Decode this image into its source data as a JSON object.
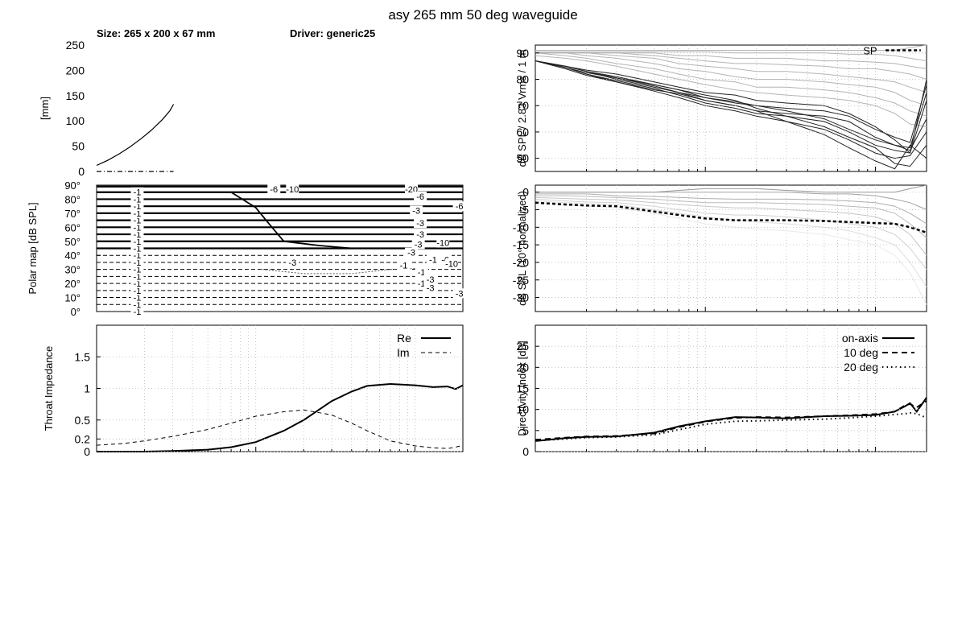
{
  "figure": {
    "title": "asy 265 mm 50 deg waveguide",
    "size_label": "Size: 265 x 200 x 67 mm",
    "driver_label": "Driver: generic25"
  },
  "chart_data": [
    {
      "id": "profile",
      "type": "line",
      "title": "",
      "xlabel": "",
      "ylabel": "[mm]",
      "xlim": [
        0,
        200
      ],
      "ylim": [
        0,
        250
      ],
      "yticks": [
        0,
        50,
        100,
        150,
        200,
        250
      ],
      "grid": false,
      "series": [
        {
          "style": "solid",
          "points": [
            [
              0,
              12
            ],
            [
              6,
              22
            ],
            [
              12,
              34
            ],
            [
              18,
              48
            ],
            [
              24,
              64
            ],
            [
              30,
              82
            ],
            [
              36,
              103
            ],
            [
              40,
              120
            ],
            [
              42,
              133
            ]
          ]
        },
        {
          "style": "dashdot",
          "points": [
            [
              0,
              0
            ],
            [
              42,
              0
            ]
          ]
        }
      ]
    },
    {
      "id": "frequency_response",
      "type": "line",
      "xscale": "log",
      "xlim": [
        100,
        20000
      ],
      "ylim": [
        45,
        93
      ],
      "yticks": [
        50,
        60,
        70,
        80,
        90
      ],
      "ylabel": "dB SPL / 2.83 Vrms / 1 m",
      "grid": true,
      "legend": {
        "position": "top-right",
        "entries": [
          "SP"
        ]
      },
      "x": [
        100,
        150,
        200,
        300,
        500,
        700,
        1000,
        1500,
        2000,
        3000,
        5000,
        7000,
        10000,
        13000,
        16000,
        20000
      ],
      "gray_series": [
        [
          91,
          91,
          91,
          91,
          91,
          91,
          91,
          91,
          91,
          91,
          91,
          91,
          91,
          91,
          92,
          93
        ],
        [
          90.5,
          90.5,
          90.5,
          90.5,
          90.5,
          90.5,
          90.5,
          90,
          90,
          90,
          90,
          89.5,
          89.5,
          89,
          88,
          87
        ],
        [
          90,
          90,
          90,
          90,
          90,
          89,
          89,
          88,
          88,
          88,
          87,
          87,
          86.5,
          86,
          85,
          84
        ],
        [
          90,
          90,
          90,
          90,
          89,
          88,
          87,
          86,
          86,
          85.5,
          85,
          84,
          84,
          83,
          82,
          80
        ],
        [
          90,
          90,
          90,
          89,
          88,
          86,
          85,
          84,
          83,
          83,
          82,
          81,
          80,
          79,
          77,
          75
        ],
        [
          90,
          90,
          89,
          88,
          86,
          84,
          83,
          81,
          80,
          80,
          79,
          78,
          77,
          75,
          72,
          70
        ],
        [
          90,
          89,
          88,
          86,
          84,
          82,
          80,
          79,
          77,
          77,
          76,
          75,
          73,
          71,
          68,
          66
        ],
        [
          89,
          88,
          87,
          85,
          82,
          80,
          78,
          76,
          75,
          74,
          73,
          72,
          70,
          67,
          63,
          62
        ]
      ],
      "sp_segment": {
        "x": [
          11500,
          18500
        ],
        "y": [
          91,
          91
        ]
      },
      "dark_series": [
        [
          87,
          85,
          83,
          81,
          78,
          76,
          73,
          71,
          70,
          69,
          68,
          66,
          61,
          58,
          56,
          78
        ],
        [
          87,
          84.5,
          82.5,
          80.5,
          77.5,
          75,
          72,
          70,
          68,
          67,
          66,
          64,
          58,
          55,
          54,
          75
        ],
        [
          87,
          85,
          83.5,
          82,
          79,
          77,
          75,
          74,
          72,
          71,
          70,
          67,
          62,
          57,
          52,
          80
        ],
        [
          87,
          84.5,
          82,
          79.5,
          76.5,
          74,
          71,
          69,
          67,
          66,
          64,
          60,
          55,
          53,
          52,
          72
        ],
        [
          87,
          85,
          83,
          80,
          77,
          75,
          73,
          71.5,
          70,
          68,
          65,
          61,
          57,
          55,
          53,
          65
        ],
        [
          87,
          84,
          81.5,
          79,
          75.5,
          73,
          70,
          68,
          66,
          64,
          61,
          57,
          52,
          50,
          51,
          60
        ],
        [
          87,
          85,
          83,
          80.5,
          78,
          76,
          74,
          72,
          69,
          66,
          62,
          58,
          54,
          48,
          47,
          55
        ],
        [
          87,
          84.5,
          82,
          79,
          76,
          74.5,
          72,
          70,
          68,
          64,
          59,
          54,
          49,
          46,
          55,
          50
        ]
      ]
    },
    {
      "id": "polar_map",
      "type": "contour",
      "ylabel": "Polar map [dB SPL]",
      "yticks": [
        "0°",
        "10°",
        "20°",
        "30°",
        "40°",
        "50°",
        "60°",
        "70°",
        "80°",
        "90°"
      ],
      "xscale": "log",
      "xlim": [
        100,
        20000
      ],
      "contour_labels": [
        {
          "text": "-1",
          "angle": 0,
          "freq": 180
        },
        {
          "text": "-1",
          "angle": 5,
          "freq": 180
        },
        {
          "text": "-1",
          "angle": 10,
          "freq": 180
        },
        {
          "text": "-1",
          "angle": 15,
          "freq": 180
        },
        {
          "text": "-1",
          "angle": 20,
          "freq": 180
        },
        {
          "text": "-1",
          "angle": 25,
          "freq": 180
        },
        {
          "text": "-1",
          "angle": 30,
          "freq": 180
        },
        {
          "text": "-1",
          "angle": 35,
          "freq": 180
        },
        {
          "text": "-1",
          "angle": 40,
          "freq": 180
        },
        {
          "text": "-1",
          "angle": 45,
          "freq": 180
        },
        {
          "text": "-1",
          "angle": 50,
          "freq": 180
        },
        {
          "text": "-1",
          "angle": 55,
          "freq": 180
        },
        {
          "text": "-1",
          "angle": 60,
          "freq": 180
        },
        {
          "text": "-1",
          "angle": 65,
          "freq": 180
        },
        {
          "text": "-1",
          "angle": 70,
          "freq": 180
        },
        {
          "text": "-1",
          "angle": 75,
          "freq": 180
        },
        {
          "text": "-1",
          "angle": 80,
          "freq": 180
        },
        {
          "text": "-1",
          "angle": 85,
          "freq": 180
        },
        {
          "text": "-6",
          "angle": 87,
          "freq": 1300
        },
        {
          "text": "-10",
          "angle": 87,
          "freq": 1700
        },
        {
          "text": "-20",
          "angle": 87,
          "freq": 9500
        },
        {
          "text": "-6",
          "angle": 82,
          "freq": 10800
        },
        {
          "text": "-3",
          "angle": 72,
          "freq": 10200
        },
        {
          "text": "-3",
          "angle": 63,
          "freq": 10800
        },
        {
          "text": "-3",
          "angle": 55,
          "freq": 10800
        },
        {
          "text": "-3",
          "angle": 48,
          "freq": 10500
        },
        {
          "text": "-3",
          "angle": 42,
          "freq": 9500
        },
        {
          "text": "-3",
          "angle": 35,
          "freq": 1700
        },
        {
          "text": "-1",
          "angle": 33,
          "freq": 8500
        },
        {
          "text": "-1",
          "angle": 28,
          "freq": 11000
        },
        {
          "text": "-1",
          "angle": 20,
          "freq": 11000
        },
        {
          "text": "-3",
          "angle": 23,
          "freq": 12500
        },
        {
          "text": "-3",
          "angle": 17,
          "freq": 12500
        },
        {
          "text": "-1",
          "angle": 37,
          "freq": 13000
        },
        {
          "text": "-6",
          "angle": 37,
          "freq": 15500
        },
        {
          "text": "-10",
          "angle": 34,
          "freq": 17000
        },
        {
          "text": "-10",
          "angle": 49,
          "freq": 15000
        },
        {
          "text": "-3",
          "angle": 13,
          "freq": 19000
        },
        {
          "text": "-6",
          "angle": 75,
          "freq": 19000
        }
      ]
    },
    {
      "id": "normalized_polar",
      "type": "line",
      "xscale": "log",
      "xlim": [
        100,
        20000
      ],
      "ylim": [
        -34,
        2
      ],
      "yticks": [
        0,
        -5,
        -10,
        -15,
        -20,
        -25,
        -30
      ],
      "ylabel": "dB SPL (10° normalized)",
      "grid": true,
      "x": [
        100,
        150,
        200,
        300,
        500,
        700,
        1000,
        1500,
        2000,
        3000,
        5000,
        7000,
        10000,
        13000,
        16000,
        20000
      ],
      "dashed_series": [
        -3,
        -3.5,
        -3.8,
        -4,
        -5.5,
        -6.5,
        -7.5,
        -8,
        -8,
        -8,
        -8.2,
        -8.5,
        -8.8,
        -9,
        -10,
        -11.5
      ],
      "gray_series": [
        [
          0,
          0,
          0,
          0,
          0,
          0.5,
          1,
          1,
          1,
          0.5,
          0,
          0,
          0,
          0,
          1,
          2
        ],
        [
          0,
          0,
          0,
          0,
          0,
          0,
          0,
          0,
          0,
          0,
          -0.5,
          -0.5,
          -1,
          -2,
          -3,
          -5
        ],
        [
          -0.5,
          -0.5,
          -0.5,
          -1,
          -1.2,
          -1.5,
          -1.8,
          -2,
          -2,
          -2,
          -2.2,
          -2.5,
          -3,
          -4,
          -6,
          -9
        ],
        [
          -1,
          -1,
          -1.2,
          -1.5,
          -2,
          -2.5,
          -3,
          -3,
          -3,
          -3.2,
          -3.5,
          -4,
          -4.5,
          -6,
          -9,
          -13
        ],
        [
          -1.5,
          -1.8,
          -2,
          -2.2,
          -3,
          -3.5,
          -4,
          -4.5,
          -4.5,
          -5,
          -5.5,
          -6,
          -7,
          -9,
          -12,
          -18
        ],
        [
          -2,
          -2.5,
          -2.8,
          -3,
          -4,
          -5,
          -6,
          -6.5,
          -6.5,
          -7,
          -8,
          -9,
          -10,
          -12,
          -16,
          -22
        ],
        [
          -2.5,
          -3,
          -3.2,
          -3.5,
          -5,
          -6,
          -7,
          -8,
          -8.5,
          -9,
          -10,
          -11,
          -13,
          -15,
          -20,
          -27
        ],
        [
          -3,
          -3.5,
          -4,
          -4.5,
          -6,
          -7.5,
          -9,
          -10,
          -10.5,
          -11,
          -12,
          -13.5,
          -15,
          -18,
          -23,
          -32
        ]
      ]
    },
    {
      "id": "throat_impedance",
      "type": "line",
      "xscale": "log",
      "xlim": [
        100,
        20000
      ],
      "ylim": [
        0,
        2
      ],
      "yticks": [
        0,
        0.2,
        0.5,
        1,
        1.5
      ],
      "ylabel": "Throat Impedance",
      "grid": true,
      "legend": {
        "position": "top-right",
        "entries": [
          "Re",
          "Im"
        ]
      },
      "x": [
        100,
        150,
        200,
        300,
        500,
        700,
        1000,
        1500,
        2000,
        3000,
        4000,
        5000,
        7000,
        10000,
        13000,
        16000,
        18000,
        20000
      ],
      "series": [
        {
          "name": "Re",
          "style": "solid",
          "values": [
            0,
            0,
            0,
            0.01,
            0.03,
            0.07,
            0.15,
            0.33,
            0.5,
            0.8,
            0.95,
            1.04,
            1.07,
            1.05,
            1.02,
            1.03,
            0.99,
            1.05
          ]
        },
        {
          "name": "Im",
          "style": "dashed",
          "values": [
            0.1,
            0.13,
            0.17,
            0.24,
            0.35,
            0.45,
            0.56,
            0.63,
            0.66,
            0.58,
            0.45,
            0.33,
            0.17,
            0.09,
            0.06,
            0.05,
            0.07,
            0.1
          ]
        }
      ]
    },
    {
      "id": "directivity_index",
      "type": "line",
      "xscale": "log",
      "xlim": [
        100,
        20000
      ],
      "ylim": [
        0,
        30
      ],
      "yticks": [
        0,
        5,
        10,
        15,
        20,
        25
      ],
      "ylabel": "Directivity Index [dB]",
      "grid": true,
      "legend": {
        "position": "top-right",
        "entries": [
          "on-axis",
          "10 deg",
          "20 deg"
        ]
      },
      "x": [
        100,
        150,
        200,
        300,
        500,
        700,
        1000,
        1500,
        2000,
        3000,
        5000,
        7000,
        10000,
        13000,
        15000,
        16000,
        17500,
        20000
      ],
      "series": [
        {
          "name": "on-axis",
          "style": "solid",
          "values": [
            2.5,
            3.2,
            3.5,
            3.6,
            4.5,
            6,
            7.2,
            8.2,
            8.1,
            7.9,
            8.4,
            8.5,
            8.7,
            9.5,
            10.8,
            11.5,
            9.5,
            12.8
          ]
        },
        {
          "name": "10 deg",
          "style": "dashed",
          "values": [
            2.8,
            3.3,
            3.6,
            3.7,
            4.3,
            5.8,
            7.1,
            8,
            8.2,
            8.1,
            8.4,
            8.6,
            8.9,
            9.5,
            11,
            11.3,
            10.5,
            12
          ]
        },
        {
          "name": "20 deg",
          "style": "dotted",
          "values": [
            2.6,
            3,
            3.3,
            3.5,
            4,
            5.2,
            6.5,
            7.2,
            7.3,
            7.5,
            7.7,
            8,
            8.4,
            8.8,
            9,
            9.2,
            9,
            8
          ]
        }
      ]
    }
  ]
}
